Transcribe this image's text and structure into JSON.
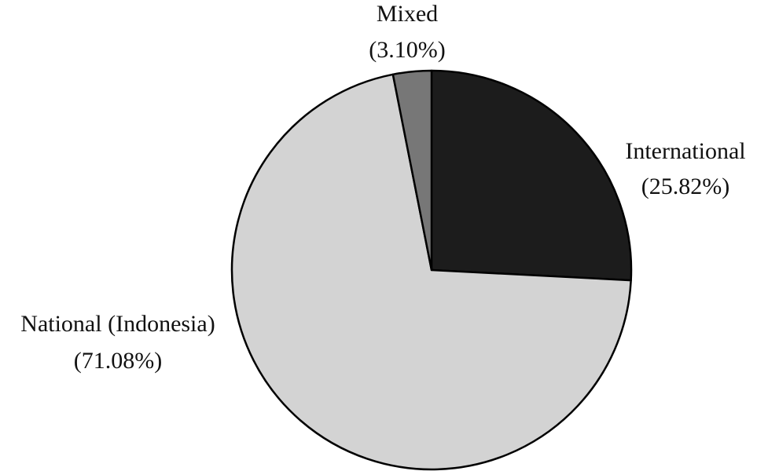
{
  "chart_data": {
    "type": "pie",
    "categories": [
      "International",
      "National (Indonesia)",
      "Mixed"
    ],
    "values": [
      25.82,
      71.08,
      3.1
    ],
    "value_labels": [
      "(25.82%)",
      "(71.08%)",
      "(3.10%)"
    ],
    "colors": [
      "#1c1c1c",
      "#d3d3d3",
      "#777777"
    ]
  }
}
